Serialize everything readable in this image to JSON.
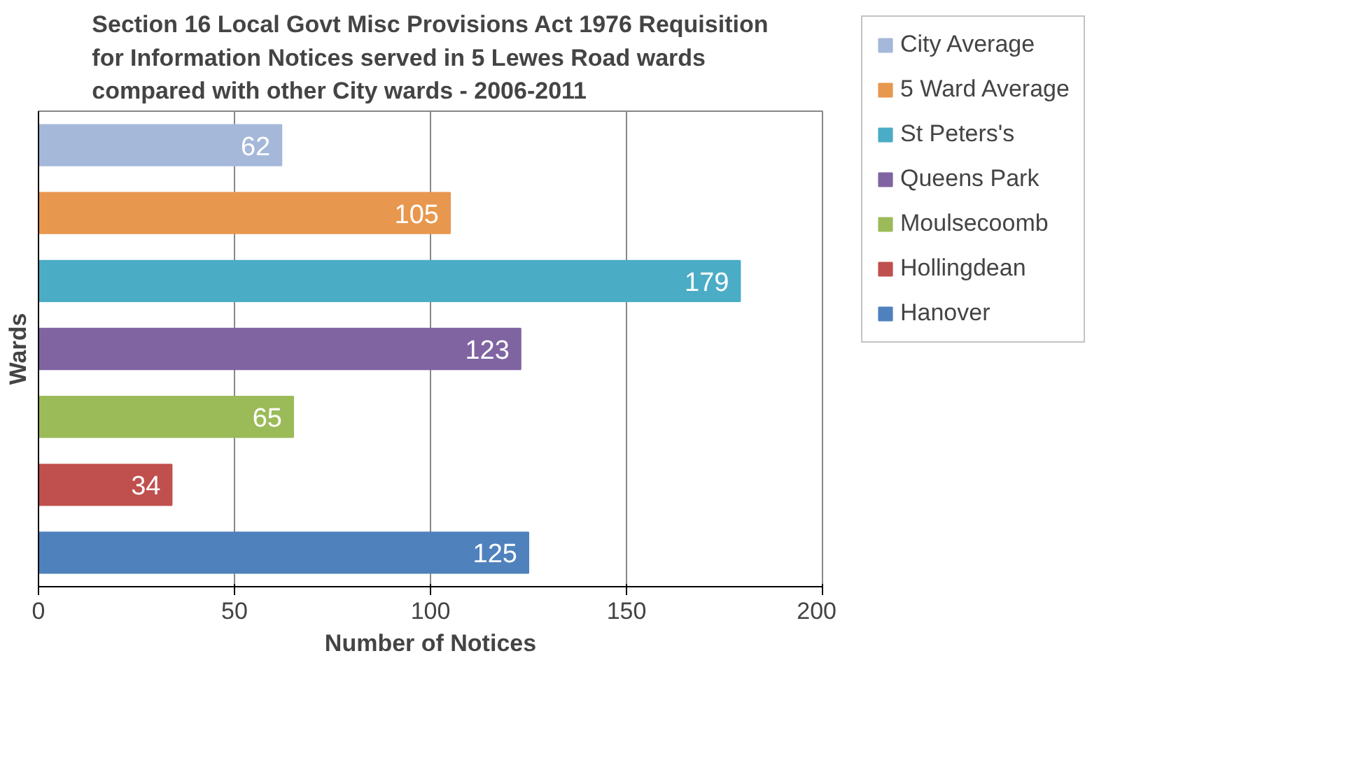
{
  "chart_data": {
    "type": "bar",
    "orientation": "horizontal",
    "title": "Section 16 Local Govt Misc Provisions Act 1976 Requisition for Information Notices served in 5 Lewes Road wards compared with other City wards  - 2006-2011",
    "xlabel": "Number of Notices",
    "ylabel": "Wards",
    "categories": [
      null,
      null,
      null,
      null,
      null,
      null,
      null
    ],
    "series": [
      {
        "name": "City Average",
        "color": "#a5b8d9",
        "values": [
          62,
          null,
          null,
          null,
          null,
          null,
          null
        ]
      },
      {
        "name": "5 Ward Average",
        "color": "#e8974e",
        "values": [
          null,
          105,
          null,
          null,
          null,
          null,
          null
        ]
      },
      {
        "name": "St Peters's",
        "color": "#4bacc6",
        "values": [
          null,
          null,
          179,
          null,
          null,
          null,
          null
        ]
      },
      {
        "name": "Queens Park",
        "color": "#8064a2",
        "values": [
          null,
          null,
          null,
          123,
          null,
          null,
          null
        ]
      },
      {
        "name": "Moulsecoomb",
        "color": "#9bbb59",
        "values": [
          null,
          null,
          null,
          null,
          65,
          null,
          null
        ]
      },
      {
        "name": "Hollingdean",
        "color": "#c0504d",
        "values": [
          null,
          null,
          null,
          null,
          null,
          34,
          null
        ]
      },
      {
        "name": "Hanover",
        "color": "#4f81bd",
        "values": [
          null,
          null,
          null,
          null,
          null,
          null,
          125
        ]
      }
    ],
    "xlim": [
      0,
      200
    ],
    "xticks": [
      0,
      50,
      100,
      150,
      200
    ],
    "grid": "x",
    "legend": "right",
    "tick_labels": "x",
    "data_labels": true
  }
}
